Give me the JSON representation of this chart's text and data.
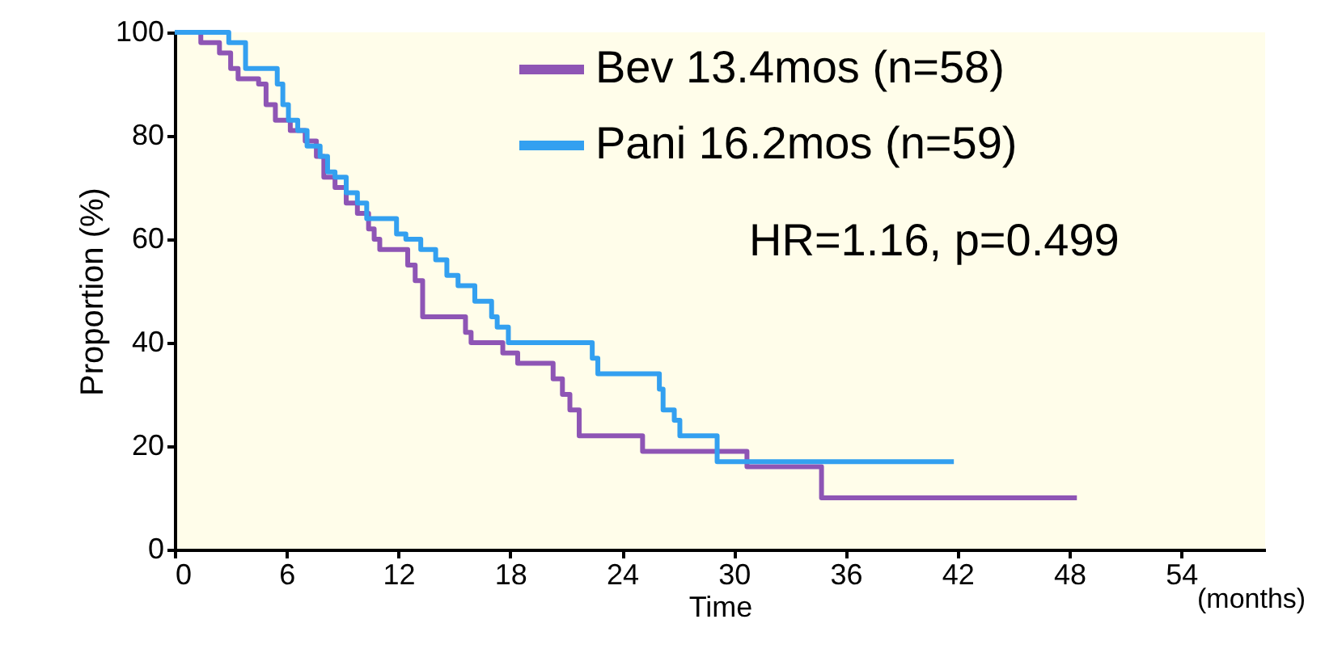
{
  "chart_data": {
    "type": "step",
    "xlabel": "Time",
    "ylabel": "Proportion (%)",
    "xlim": [
      0,
      58.5
    ],
    "ylim": [
      0,
      100
    ],
    "xticks": [
      0,
      6,
      12,
      18,
      24,
      30,
      36,
      42,
      48,
      54
    ],
    "yticks": [
      0,
      20,
      40,
      60,
      80,
      100
    ],
    "grid": false,
    "legend": "top right",
    "annotations": [
      "HR=1.16, p=0.499",
      "(months)"
    ],
    "series": [
      {
        "name": "Bev 13.4mos (n=58)",
        "color": "#8e55b5",
        "x": [
          0,
          1.4,
          2.4,
          3.0,
          3.4,
          4.5,
          4.9,
          5.4,
          6.2,
          7.0,
          7.6,
          8.0,
          8.6,
          9.2,
          9.8,
          10.4,
          10.7,
          11.0,
          12.5,
          12.9,
          13.3,
          15.6,
          15.9,
          17.6,
          18.4,
          20.3,
          20.8,
          21.2,
          21.7,
          25.1,
          30.7,
          34.7,
          48.4
        ],
        "values": [
          100,
          98,
          96,
          93,
          91,
          90,
          86,
          83,
          81,
          79,
          76,
          72,
          70,
          67,
          65,
          62,
          60,
          58,
          55,
          52,
          45,
          42,
          40,
          38,
          36,
          33,
          30,
          27,
          22,
          19,
          16,
          10,
          10
        ]
      },
      {
        "name": "Pani 16.2mos (n=59)",
        "color": "#33a0f0",
        "x": [
          0,
          2.9,
          3.8,
          5.5,
          5.8,
          6.1,
          6.6,
          7.1,
          7.8,
          8.2,
          8.6,
          9.2,
          9.8,
          10.3,
          10.8,
          11.9,
          12.4,
          13.2,
          14.0,
          14.6,
          15.2,
          16.1,
          17.0,
          17.3,
          17.9,
          22.4,
          22.7,
          26.0,
          26.2,
          26.8,
          27.1,
          27.5,
          29.1,
          41.8
        ],
        "values": [
          100,
          98,
          93,
          90,
          86,
          83,
          81,
          78,
          76,
          73,
          72,
          69,
          67,
          64,
          64,
          61,
          60,
          58,
          56,
          53,
          51,
          48,
          45,
          43,
          40,
          37,
          34,
          31,
          27,
          25,
          22,
          22,
          17,
          17
        ]
      }
    ]
  }
}
